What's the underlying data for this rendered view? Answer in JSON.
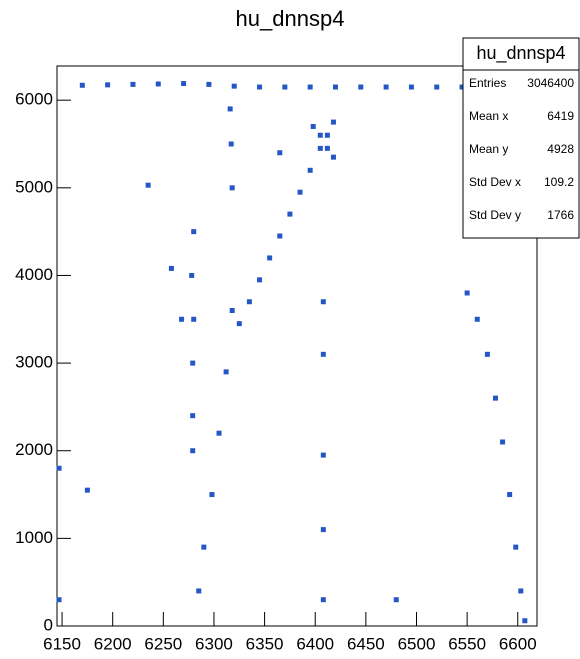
{
  "chart_data": {
    "type": "scatter",
    "title": "hu_dnnsp4",
    "xlim": [
      6145,
      6619
    ],
    "ylim": [
      0,
      6390
    ],
    "xticks": [
      6150,
      6200,
      6250,
      6300,
      6350,
      6400,
      6450,
      6500,
      6550,
      6600
    ],
    "yticks": [
      0,
      1000,
      2000,
      3000,
      4000,
      5000,
      6000
    ],
    "series": [
      {
        "color": "#2457c5",
        "x": [
          6170,
          6195,
          6220,
          6245,
          6270,
          6295,
          6320,
          6345,
          6370,
          6395,
          6420,
          6445,
          6470,
          6495,
          6520,
          6545,
          6570,
          6595,
          6615,
          6325,
          6335,
          6345,
          6355,
          6365,
          6375,
          6385,
          6395,
          6405,
          6412,
          6418,
          6550,
          6560,
          6570,
          6578,
          6585,
          6592,
          6598,
          6603,
          6607,
          6285,
          6290,
          6298,
          6305,
          6312,
          6318,
          6318,
          6317,
          6316,
          6280,
          6278,
          6280,
          6279,
          6279,
          6279,
          6408,
          6408,
          6408,
          6408,
          6408,
          6398,
          6405,
          6412,
          6418,
          6147,
          6147,
          6175,
          6235,
          6258,
          6268,
          6365,
          6480
        ],
        "y": [
          6170,
          6175,
          6180,
          6185,
          6190,
          6180,
          6160,
          6150,
          6150,
          6150,
          6150,
          6150,
          6150,
          6150,
          6150,
          6150,
          6150,
          6150,
          6150,
          3450,
          3700,
          3950,
          4200,
          4450,
          4700,
          4950,
          5200,
          5450,
          5600,
          5750,
          3800,
          3500,
          3100,
          2600,
          2100,
          1500,
          900,
          400,
          60,
          400,
          900,
          1500,
          2200,
          2900,
          3600,
          5000,
          5500,
          5900,
          4500,
          4000,
          3500,
          3000,
          2400,
          2000,
          3700,
          3100,
          1950,
          1100,
          300,
          5700,
          5600,
          5450,
          5350,
          1800,
          300,
          1550,
          5030,
          4080,
          3500,
          5400,
          300
        ]
      }
    ],
    "stats": {
      "title": "hu_dnnsp4",
      "rows": [
        {
          "label": "Entries",
          "value": 3046400
        },
        {
          "label": "Mean x",
          "value": 6419
        },
        {
          "label": "Mean y",
          "value": 4928
        },
        {
          "label": "Std Dev x",
          "value": 109.2
        },
        {
          "label": "Std Dev y",
          "value": 1766
        }
      ]
    }
  }
}
